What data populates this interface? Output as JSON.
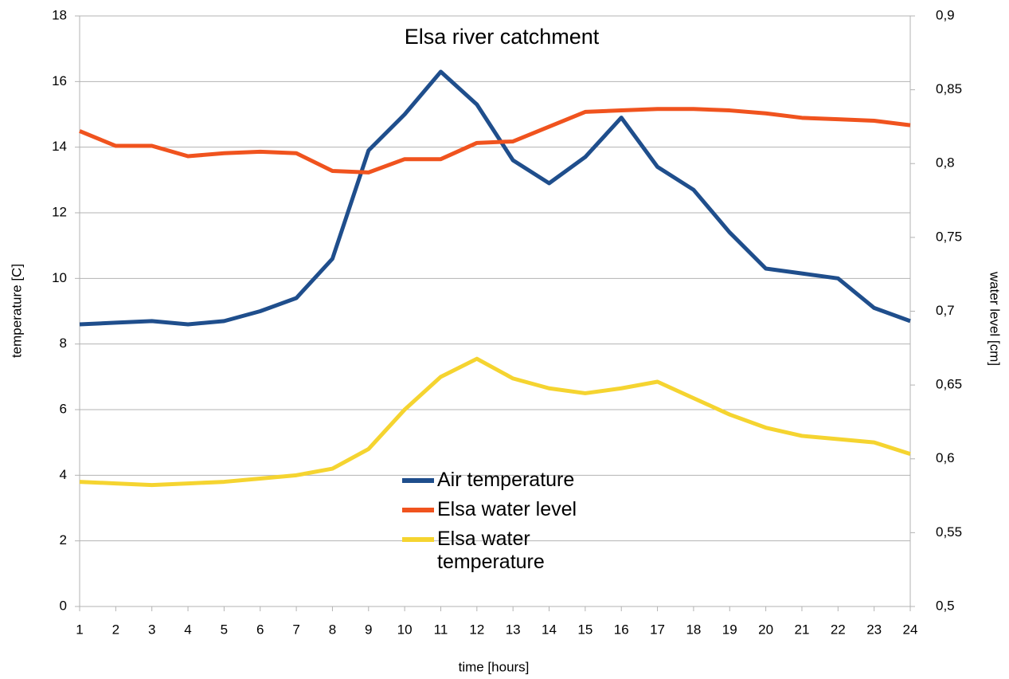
{
  "chart_data": {
    "type": "line",
    "title": "Elsa river catchment",
    "xlabel": "time [hours]",
    "ylabel": "temperature [C]",
    "y2label": "water level [cm]",
    "x": [
      1,
      2,
      3,
      4,
      5,
      6,
      7,
      8,
      9,
      10,
      11,
      12,
      13,
      14,
      15,
      16,
      17,
      18,
      19,
      20,
      21,
      22,
      23,
      24
    ],
    "xlim": [
      1,
      24
    ],
    "xticks": [
      1,
      2,
      3,
      4,
      5,
      6,
      7,
      8,
      9,
      10,
      11,
      12,
      13,
      14,
      15,
      16,
      17,
      18,
      19,
      20,
      21,
      22,
      23,
      24
    ],
    "ylim": [
      0,
      18
    ],
    "yticks": [
      0,
      2,
      4,
      6,
      8,
      10,
      12,
      14,
      16,
      18
    ],
    "y2lim": [
      0.5,
      0.9
    ],
    "y2ticks": [
      {
        "value": 0.5,
        "label": "0,5"
      },
      {
        "value": 0.55,
        "label": "0,55"
      },
      {
        "value": 0.6,
        "label": "0,6"
      },
      {
        "value": 0.65,
        "label": "0,65"
      },
      {
        "value": 0.7,
        "label": "0,7"
      },
      {
        "value": 0.75,
        "label": "0,75"
      },
      {
        "value": 0.8,
        "label": "0,8"
      },
      {
        "value": 0.85,
        "label": "0,85"
      },
      {
        "value": 0.9,
        "label": "0,9"
      }
    ],
    "grid": true,
    "series": [
      {
        "name": "Air temperature",
        "color": "#1f4e8c",
        "values": [
          8.6,
          8.65,
          8.7,
          8.6,
          8.7,
          9.0,
          9.4,
          10.6,
          13.9,
          15.0,
          16.3,
          15.3,
          13.6,
          12.9,
          13.7,
          14.9,
          13.4,
          12.7,
          11.4,
          10.3,
          10.15,
          10.0,
          9.1,
          8.7
        ]
      },
      {
        "name": "Elsa water level",
        "color": "#f0531e",
        "axis": "y2",
        "values": [
          0.822,
          0.812,
          0.812,
          0.805,
          0.807,
          0.808,
          0.807,
          0.795,
          0.794,
          0.803,
          0.803,
          0.814,
          0.815,
          0.825,
          0.835,
          0.836,
          0.837,
          0.837,
          0.836,
          0.834,
          0.831,
          0.83,
          0.829,
          0.826
        ]
      },
      {
        "name": "Elsa water temperature",
        "color": "#f5d430",
        "values": [
          3.8,
          3.75,
          3.7,
          3.75,
          3.8,
          3.9,
          4.0,
          4.2,
          4.8,
          6.0,
          7.0,
          7.55,
          6.95,
          6.65,
          6.5,
          6.65,
          6.85,
          6.35,
          5.85,
          5.45,
          5.2,
          5.1,
          5.0,
          4.65
        ]
      }
    ]
  }
}
